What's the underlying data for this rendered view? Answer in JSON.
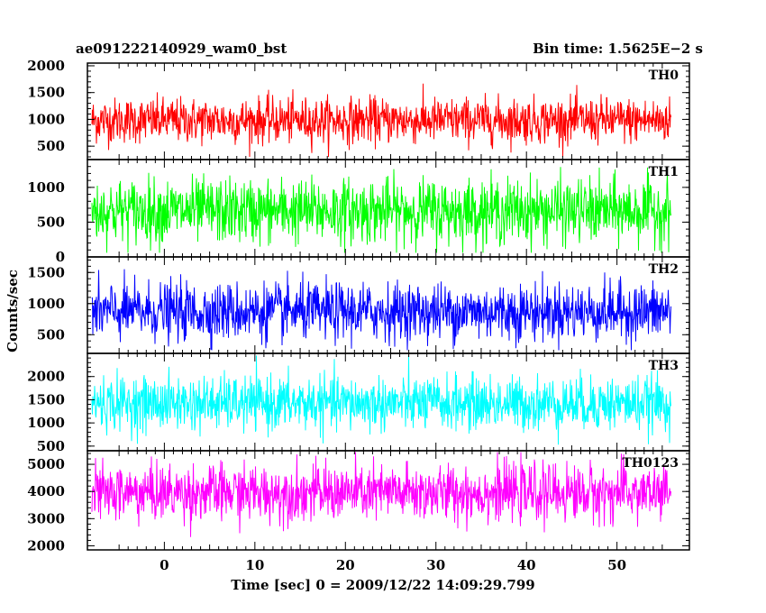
{
  "header": {
    "left_title": "ae091222140929_wam0_bst",
    "right_title": "Bin time: 1.5625E−2 s"
  },
  "chart_data": {
    "type": "line",
    "xlabel": "Time [sec] 0 = 2009/12/22 14:09:29.799",
    "ylabel": "Counts/sec",
    "xlim": [
      -8.5,
      58
    ],
    "data_x_range": [
      -8,
      56
    ],
    "xticks": [
      0,
      10,
      20,
      30,
      40,
      50
    ],
    "bin_time_s": 0.015625,
    "grid": false,
    "series": [
      {
        "name": "TH0",
        "color": "#ff0000",
        "ylim": [
          250,
          2050
        ],
        "yticks": [
          500,
          1000,
          1500,
          2000
        ],
        "mean": 980,
        "noise_low": 300,
        "noise_high": 2000,
        "noise_sigma": 210
      },
      {
        "name": "TH1",
        "color": "#00ff00",
        "ylim": [
          0,
          1400
        ],
        "yticks": [
          0,
          500,
          1000
        ],
        "mean": 660,
        "noise_low": 60,
        "noise_high": 1300,
        "noise_sigma": 230
      },
      {
        "name": "TH2",
        "color": "#0000ff",
        "ylim": [
          200,
          1750
        ],
        "yticks": [
          500,
          1000,
          1500
        ],
        "mean": 870,
        "noise_low": 250,
        "noise_high": 1700,
        "noise_sigma": 230
      },
      {
        "name": "TH3",
        "color": "#00ffff",
        "ylim": [
          400,
          2500
        ],
        "yticks": [
          500,
          1000,
          1500,
          2000
        ],
        "mean": 1420,
        "noise_low": 460,
        "noise_high": 2480,
        "noise_sigma": 290
      },
      {
        "name": "TH0123",
        "color": "#ff00ff",
        "ylim": [
          1850,
          5500
        ],
        "yticks": [
          2000,
          3000,
          4000,
          5000
        ],
        "mean": 3950,
        "noise_low": 1950,
        "noise_high": 5450,
        "noise_sigma": 520
      }
    ]
  }
}
